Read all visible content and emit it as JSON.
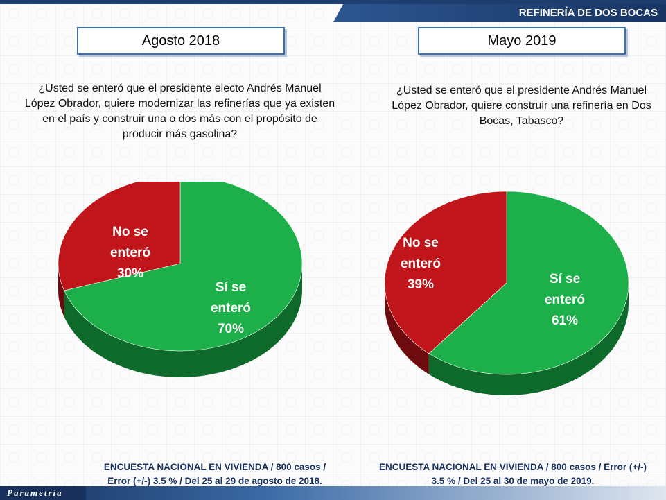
{
  "header": {
    "title": "REFINERÍA DE DOS BOCAS"
  },
  "panels": [
    {
      "period": "Agosto 2018",
      "question": "¿Usted se enteró que el presidente electo Andrés Manuel López Obrador, quiere modernizar las refinerías que ya existen en el país y construir una o dos más con el propósito de producir más gasolina?",
      "footnote_line1": "ENCUESTA NACIONAL EN VIVIENDA / 800 casos /",
      "footnote_line2": "Error (+/-) 3.5 % / Del 25 al 29 de agosto de 2018."
    },
    {
      "period": "Mayo 2019",
      "question": "¿Usted se enteró que el presidente Andrés Manuel López Obrador, quiere construir una refinería en Dos Bocas, Tabasco?",
      "footnote_line1": "ENCUESTA NACIONAL EN VIVIENDA / 800 casos / Error (+/-)",
      "footnote_line2": "3.5 % / Del 25 al 30 de mayo de 2019."
    }
  ],
  "chart_data": [
    {
      "type": "pie",
      "title": "Agosto 2018",
      "slices": [
        {
          "label_line1": "Sí se",
          "label_line2": "enteró",
          "value": 70,
          "value_text": "70%",
          "color": "#1db04a",
          "side": "#0e6a2a"
        },
        {
          "label_line1": "No se",
          "label_line2": "enteró",
          "value": 30,
          "value_text": "30%",
          "color": "#c0151a",
          "side": "#6e0b0e"
        }
      ]
    },
    {
      "type": "pie",
      "title": "Mayo 2019",
      "slices": [
        {
          "label_line1": "Sí se",
          "label_line2": "enteró",
          "value": 61,
          "value_text": "61%",
          "color": "#1db04a",
          "side": "#0e6a2a"
        },
        {
          "label_line1": "No se",
          "label_line2": "enteró",
          "value": 39,
          "value_text": "39%",
          "color": "#c0151a",
          "side": "#6e0b0e"
        }
      ]
    }
  ],
  "logo": {
    "text": "Parametría"
  }
}
